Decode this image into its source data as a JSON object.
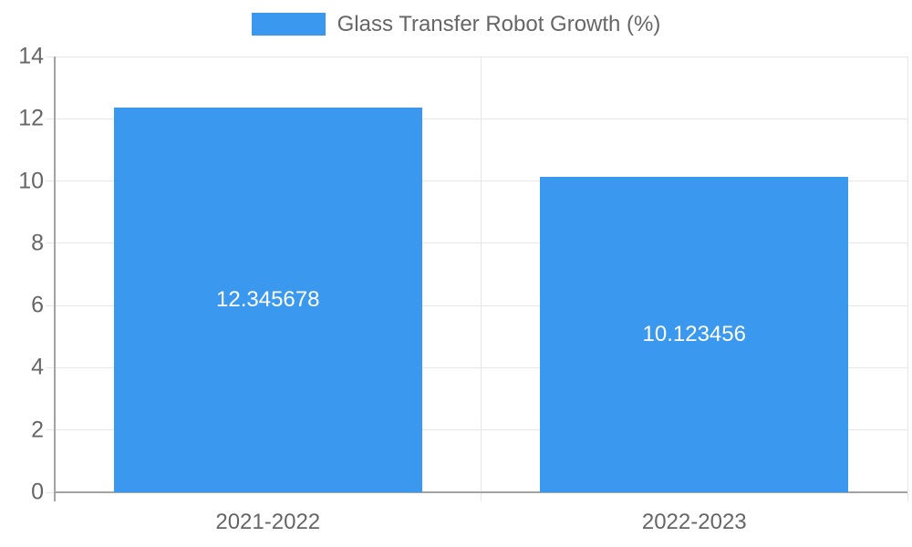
{
  "legend": {
    "label": "Glass Transfer Robot Growth (%)"
  },
  "chart_data": {
    "type": "bar",
    "title": "Glass Transfer Robot Growth (%)",
    "categories": [
      "2021-2022",
      "2022-2023"
    ],
    "values": [
      12.345678,
      10.123456
    ],
    "value_labels": [
      "12.345678",
      "10.123456"
    ],
    "ytick_labels": [
      "0",
      "2",
      "4",
      "6",
      "8",
      "10",
      "12",
      "14"
    ],
    "yticks": [
      0,
      2,
      4,
      6,
      8,
      10,
      12,
      14
    ],
    "ylim": [
      0,
      14
    ],
    "xlabel": "",
    "ylabel": "",
    "grid": true,
    "legend_position": "top",
    "colors": {
      "bar": "#3A99EE",
      "grid": "#E6E6E6",
      "axis": "#A3A3A3",
      "tick_text": "#666666",
      "value_text": "#FFFFFF"
    }
  }
}
